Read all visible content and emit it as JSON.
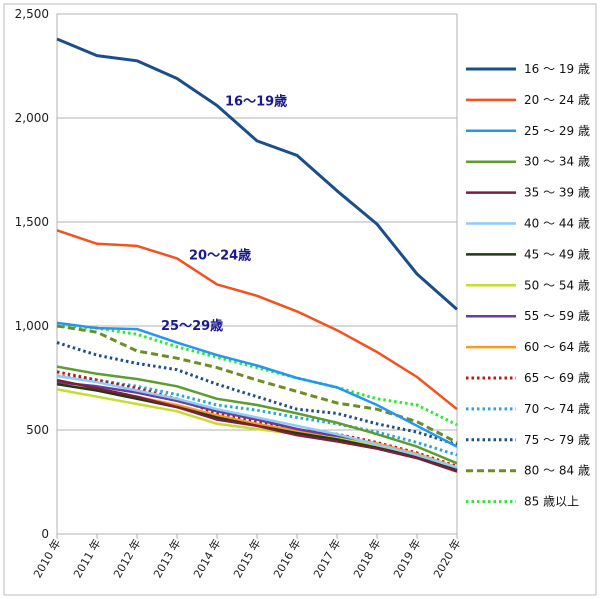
{
  "chart_data": {
    "type": "line",
    "title": "",
    "xlabel": "",
    "ylabel": "",
    "x": [
      "2010 年",
      "2011 年",
      "2012 年",
      "2013 年",
      "2014 年",
      "2015 年",
      "2016 年",
      "2017 年",
      "2018 年",
      "2019 年",
      "2020 年"
    ],
    "ylim": [
      0,
      2500
    ],
    "yticks": [
      "0",
      "500",
      "1,000",
      "1,500",
      "2,000",
      "2,500"
    ],
    "ytick_values": [
      0,
      500,
      1000,
      1500,
      2000,
      2500
    ],
    "grid": "horizontal",
    "legend_position": "right",
    "series": [
      {
        "name": "16 ～ 19 歳",
        "color": "#1a4e8a",
        "style": "solid",
        "width": 3,
        "values": [
          2380,
          2300,
          2275,
          2190,
          2060,
          1890,
          1820,
          1650,
          1490,
          1250,
          1080
        ]
      },
      {
        "name": "20 ～ 24 歳",
        "color": "#f4511e",
        "style": "solid",
        "width": 2.5,
        "values": [
          1460,
          1395,
          1385,
          1325,
          1200,
          1145,
          1070,
          980,
          875,
          755,
          600
        ]
      },
      {
        "name": "25 ～ 29 歳",
        "color": "#2196f3",
        "style": "solid",
        "width": 2.5,
        "values": [
          1015,
          990,
          985,
          920,
          860,
          810,
          750,
          705,
          620,
          520,
          420
        ]
      },
      {
        "name": "30 ～ 34 歳",
        "color": "#5c9d2e",
        "style": "solid",
        "width": 2.5,
        "values": [
          805,
          770,
          745,
          710,
          650,
          620,
          580,
          535,
          480,
          420,
          340
        ]
      },
      {
        "name": "35 ～ 39 歳",
        "color": "#7b1f3a",
        "style": "solid",
        "width": 2.5,
        "values": [
          740,
          700,
          660,
          610,
          550,
          520,
          475,
          445,
          410,
          365,
          300
        ]
      },
      {
        "name": "40 ～ 44 歳",
        "color": "#90caf9",
        "style": "solid",
        "width": 2.5,
        "values": [
          760,
          730,
          690,
          650,
          600,
          560,
          520,
          480,
          430,
          380,
          320
        ]
      },
      {
        "name": "45 ～ 49 歳",
        "color": "#1e3a10",
        "style": "solid",
        "width": 2.5,
        "values": [
          720,
          690,
          650,
          610,
          560,
          520,
          485,
          455,
          415,
          370,
          305
        ]
      },
      {
        "name": "50 ～ 54 歳",
        "color": "#c6dc2e",
        "style": "solid",
        "width": 2.5,
        "values": [
          695,
          660,
          625,
          590,
          530,
          505,
          480,
          460,
          425,
          380,
          320
        ]
      },
      {
        "name": "55 ～ 59 歳",
        "color": "#6a3d9a",
        "style": "solid",
        "width": 2.5,
        "values": [
          730,
          710,
          680,
          640,
          590,
          550,
          505,
          470,
          425,
          375,
          310
        ]
      },
      {
        "name": "60 ～ 64 歳",
        "color": "#fb9a20",
        "style": "solid",
        "width": 2.5,
        "values": [
          720,
          690,
          660,
          620,
          570,
          530,
          495,
          470,
          435,
          385,
          320
        ]
      },
      {
        "name": "65 ～ 69 歳",
        "color": "#c0151b",
        "style": "dotted",
        "width": 3,
        "values": [
          780,
          740,
          700,
          650,
          580,
          540,
          500,
          480,
          440,
          390,
          325
        ]
      },
      {
        "name": "70 ～ 74 歳",
        "color": "#2aa4e0",
        "style": "dotted",
        "width": 3,
        "values": [
          760,
          740,
          710,
          670,
          620,
          595,
          560,
          530,
          490,
          440,
          380
        ]
      },
      {
        "name": "75 ～ 79 歳",
        "color": "#1e4f86",
        "style": "dotted",
        "width": 3,
        "values": [
          920,
          860,
          820,
          790,
          720,
          660,
          600,
          580,
          530,
          490,
          430
        ]
      },
      {
        "name": "80 ～ 84 歳",
        "color": "#6b8e23",
        "style": "dashed",
        "width": 3,
        "values": [
          1000,
          970,
          880,
          845,
          800,
          740,
          685,
          630,
          600,
          540,
          440
        ]
      },
      {
        "name": "85 歳以上",
        "color": "#2ee82e",
        "style": "dotted",
        "width": 3,
        "values": [
          1000,
          990,
          960,
          900,
          850,
          800,
          750,
          705,
          650,
          620,
          525
        ]
      }
    ],
    "annotations": [
      {
        "text": "16～19歳",
        "x_index": 4.2,
        "y": 2060
      },
      {
        "text": "20～24歳",
        "x_index": 3.3,
        "y": 1320
      },
      {
        "text": "25～29歳",
        "x_index": 2.6,
        "y": 980
      }
    ]
  }
}
